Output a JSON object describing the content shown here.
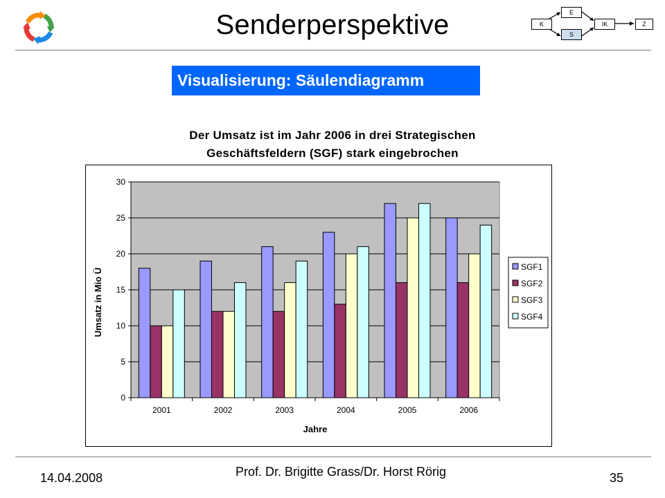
{
  "header": {
    "title": "Senderperspektive",
    "mini_diagram": {
      "e": "E",
      "k": "K",
      "s": "S",
      "ik": "IK",
      "z": "Z"
    }
  },
  "section_label": "Visualisierung: Säulendiagramm",
  "headline": {
    "line1": "Der Umsatz ist im Jahr 2006 in drei Strategischen",
    "line2": "Geschäftsfeldern (SGF) stark eingebrochen"
  },
  "colors": {
    "section_box": "#0066ff",
    "plot_area": "#c0c0c0",
    "logo": [
      "#e53935",
      "#fb8c00",
      "#43a047",
      "#1e88e5"
    ]
  },
  "chart_data": {
    "type": "bar",
    "categories": [
      "2001",
      "2002",
      "2003",
      "2004",
      "2005",
      "2006"
    ],
    "series": [
      {
        "name": "SGF1",
        "color": "#9999ff",
        "values": [
          18,
          19,
          21,
          23,
          27,
          25
        ]
      },
      {
        "name": "SGF2",
        "color": "#993366",
        "values": [
          10,
          12,
          12,
          13,
          16,
          16
        ]
      },
      {
        "name": "SGF3",
        "color": "#ffffcc",
        "values": [
          10,
          12,
          16,
          20,
          25,
          20
        ]
      },
      {
        "name": "SGF4",
        "color": "#ccffff",
        "values": [
          15,
          16,
          19,
          21,
          27,
          24
        ]
      }
    ],
    "xlabel": "Jahre",
    "ylabel": "Umsatz in Mio Ü",
    "ylim": [
      0,
      30
    ],
    "yticks": [
      "0",
      "5",
      "10",
      "15",
      "20",
      "25",
      "30"
    ],
    "grid": true,
    "legend": "right"
  },
  "footer": {
    "date": "14.04.2008",
    "authors": "Prof. Dr. Brigitte Grass/Dr. Horst Rörig",
    "page": "35"
  }
}
